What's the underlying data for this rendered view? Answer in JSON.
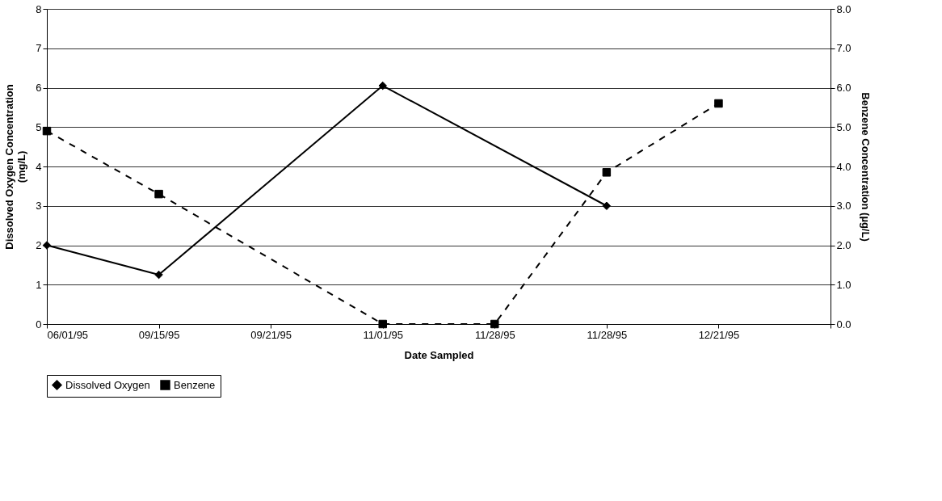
{
  "chart_data": {
    "type": "line",
    "xlabel": "Date Sampled",
    "ylabel": "Dissolved Oxygen Concentration\n(mg/L)",
    "y2label": "Benzene Concentration (µg/L)",
    "categories": [
      "06/01/95",
      "09/15/95",
      "09/21/95",
      "11/01/95",
      "11/28/95",
      "11/28/95",
      "12/21/95",
      null
    ],
    "series": [
      {
        "name": "Dissolved Oxygen",
        "color": "#000000",
        "marker": "diamond",
        "line_style": "solid",
        "values": [
          2.0,
          1.25,
          null,
          6.05,
          null,
          3.0,
          null,
          null
        ]
      },
      {
        "name": "Benzene",
        "color": "#000000",
        "marker": "square",
        "line_style": "dashed",
        "axis": "y2",
        "values": [
          4.9,
          3.3,
          null,
          0.0,
          0.0,
          3.85,
          5.6,
          null
        ]
      }
    ],
    "ylim": [
      0,
      8
    ],
    "yticks": [
      0,
      1,
      2,
      3,
      4,
      5,
      6,
      7,
      8
    ],
    "y2lim": [
      0,
      8
    ],
    "y2ticks": [
      {
        "value": 0,
        "label": "0.0"
      },
      {
        "value": 1,
        "label": "1.0"
      },
      {
        "value": 2,
        "label": "2.0"
      },
      {
        "value": 3,
        "label": "3.0"
      },
      {
        "value": 4,
        "label": "4.0"
      },
      {
        "value": 5,
        "label": "5.0"
      },
      {
        "value": 6,
        "label": "6.0"
      },
      {
        "value": 7,
        "label": "7.0"
      },
      {
        "value": 8,
        "label": "8.0"
      }
    ],
    "grid": "y",
    "legend": "bottom"
  }
}
